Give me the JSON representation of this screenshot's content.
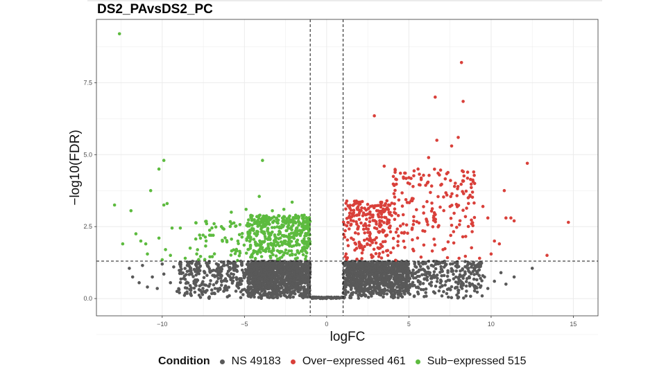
{
  "chart_data": {
    "type": "scatter",
    "title": "DS2_PAvsDS2_PC",
    "xlabel": "logFC",
    "ylabel": "−log10(FDR)",
    "xlim": [
      -14,
      16.5
    ],
    "ylim": [
      -0.6,
      9.7
    ],
    "xticks": [
      -10,
      -5,
      0,
      5,
      10,
      15
    ],
    "xtick_labels": [
      "−10",
      "−5",
      "0",
      "5",
      "10",
      "15"
    ],
    "yticks": [
      0,
      2.5,
      5,
      7.5
    ],
    "ytick_labels": [
      "0.0",
      "2.5",
      "5.0",
      "7.5"
    ],
    "thresholds": {
      "logFC": [
        -1,
        1
      ],
      "neg_log10_FDR": 1.3
    },
    "grid": true,
    "legend": {
      "title": "Condition",
      "placement": "bottom",
      "items": [
        {
          "label": "NS 49183",
          "color": "#595959"
        },
        {
          "label": "Over−expressed 461",
          "color": "#d9403a"
        },
        {
          "label": "Sub−expressed 515",
          "color": "#5dbb3f"
        }
      ]
    },
    "series": [
      {
        "name": "Sub−expressed",
        "color": "#5dbb3f",
        "points": [
          [
            -12.6,
            9.2
          ],
          [
            -12.9,
            3.25
          ],
          [
            -11.9,
            3.05
          ],
          [
            -10.2,
            4.5
          ],
          [
            -9.9,
            4.8
          ],
          [
            -10.7,
            3.75
          ],
          [
            -9.9,
            3.25
          ],
          [
            -9.7,
            3.3
          ],
          [
            -11.6,
            2.25
          ],
          [
            -11.0,
            1.9
          ],
          [
            -9.4,
            2.45
          ],
          [
            -8.9,
            2.45
          ],
          [
            -10.2,
            2.1
          ],
          [
            -9.8,
            1.7
          ],
          [
            -8.3,
            1.75
          ],
          [
            -7.9,
            1.55
          ],
          [
            -3.9,
            4.8
          ],
          [
            -4.9,
            3.1
          ],
          [
            -5.8,
            3.0
          ],
          [
            -2.1,
            3.35
          ],
          [
            -4.1,
            3.55
          ],
          [
            -6.4,
            2.5
          ],
          [
            -7.3,
            2.6
          ],
          [
            -6.9,
            2.2
          ],
          [
            -5.4,
            2.0
          ],
          [
            -2.6,
            3.1
          ],
          [
            -3.3,
            3.05
          ],
          [
            -12.4,
            1.9
          ],
          [
            -10.9,
            1.55
          ],
          [
            -9.5,
            1.5
          ],
          [
            -11.3,
            2.0
          ],
          [
            -10.0,
            1.35
          ],
          [
            -7.1,
            1.45
          ],
          [
            -8.6,
            1.4
          ]
        ]
      },
      {
        "name": "Over−expressed",
        "color": "#d9403a",
        "points": [
          [
            8.2,
            8.2
          ],
          [
            6.6,
            7.0
          ],
          [
            8.3,
            6.85
          ],
          [
            2.9,
            6.35
          ],
          [
            8.0,
            5.6
          ],
          [
            6.7,
            5.5
          ],
          [
            12.2,
            4.7
          ],
          [
            14.7,
            2.65
          ],
          [
            10.8,
            3.75
          ],
          [
            10.9,
            2.8
          ],
          [
            11.2,
            2.8
          ],
          [
            3.5,
            4.6
          ],
          [
            5.0,
            4.2
          ],
          [
            7.6,
            5.3
          ],
          [
            6.2,
            4.9
          ],
          [
            9.8,
            2.8
          ],
          [
            13.4,
            1.5
          ],
          [
            10.5,
            1.9
          ],
          [
            4.2,
            4.15
          ],
          [
            9.0,
            4.0
          ],
          [
            8.7,
            3.55
          ],
          [
            10.0,
            1.55
          ],
          [
            9.3,
            1.4
          ],
          [
            11.4,
            2.7
          ],
          [
            9.5,
            3.2
          ],
          [
            10.2,
            2.0
          ]
        ]
      },
      {
        "name": "NS",
        "color": "#595959",
        "points": [
          [
            12.5,
            1.05
          ],
          [
            11.4,
            0.75
          ],
          [
            10.6,
            0.9
          ],
          [
            10.2,
            0.6
          ],
          [
            9.8,
            0.35
          ],
          [
            9.6,
            0.75
          ],
          [
            10.9,
            0.5
          ],
          [
            -11.8,
            0.75
          ],
          [
            -11.4,
            0.55
          ],
          [
            -10.9,
            0.4
          ],
          [
            -10.6,
            0.75
          ],
          [
            -10.3,
            0.35
          ],
          [
            -9.9,
            0.85
          ],
          [
            -9.5,
            0.55
          ],
          [
            -9.1,
            0.25
          ],
          [
            -8.7,
            0.7
          ],
          [
            -8.3,
            0.45
          ],
          [
            -12.0,
            1.05
          ],
          [
            -11.2,
            1.15
          ],
          [
            -10.0,
            1.2
          ],
          [
            -9.3,
            1.1
          ]
        ]
      }
    ],
    "clouds": [
      {
        "name": "NS",
        "color": "#595959",
        "x_range": [
          -9.0,
          -1.0
        ],
        "y_range": [
          0.0,
          1.3
        ],
        "count": 500,
        "seed": 11
      },
      {
        "name": "NS",
        "color": "#595959",
        "x_range": [
          1.0,
          9.5
        ],
        "y_range": [
          0.0,
          1.3
        ],
        "count": 520,
        "seed": 23
      },
      {
        "name": "NS",
        "color": "#595959",
        "x_range": [
          -4.8,
          -1.0
        ],
        "y_range": [
          0.0,
          1.3
        ],
        "count": 900,
        "seed": 37
      },
      {
        "name": "NS",
        "color": "#595959",
        "x_range": [
          1.0,
          5.0
        ],
        "y_range": [
          0.0,
          1.3
        ],
        "count": 700,
        "seed": 41
      },
      {
        "name": "NS",
        "color": "#595959",
        "x_range": [
          -1.0,
          1.0
        ],
        "y_range": [
          0.0,
          0.05
        ],
        "count": 80,
        "seed": 53
      },
      {
        "name": "Sub−expressed",
        "color": "#5dbb3f",
        "x_range": [
          -4.8,
          -1.0
        ],
        "y_range": [
          1.3,
          2.9
        ],
        "count": 420,
        "seed": 61
      },
      {
        "name": "Sub−expressed",
        "color": "#5dbb3f",
        "x_range": [
          -8.0,
          -4.8
        ],
        "y_range": [
          1.3,
          2.7
        ],
        "count": 60,
        "seed": 67
      },
      {
        "name": "Over−expressed",
        "color": "#d9403a",
        "x_range": [
          1.0,
          4.0
        ],
        "y_range": [
          1.3,
          3.4
        ],
        "count": 230,
        "seed": 71
      },
      {
        "name": "Over−expressed",
        "color": "#d9403a",
        "x_range": [
          4.0,
          9.0
        ],
        "y_range": [
          1.3,
          4.5
        ],
        "count": 190,
        "seed": 79
      }
    ]
  }
}
